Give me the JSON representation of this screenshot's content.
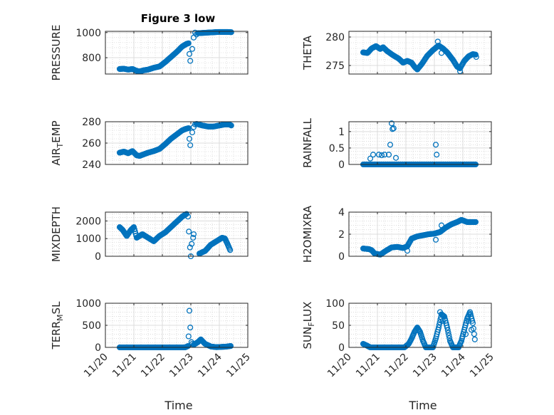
{
  "figure": {
    "title": "Figure 3 low",
    "xlabel": "Time"
  },
  "colors": {
    "marker": "#0072BD",
    "axis": "#262626",
    "grid": "#dcdcdc",
    "minor_grid": "#c8c8c8"
  },
  "chart_data": [
    {
      "type": "scatter",
      "title": "Figure 3 low",
      "ylabel": "PRESSURE",
      "xlim": [
        20,
        25
      ],
      "ylim": [
        670,
        1010
      ],
      "yticks": [
        800,
        1000
      ],
      "xticks": [
        20,
        21,
        22,
        23,
        24,
        25
      ],
      "xticklabels": [
        "11/20",
        "11/21",
        "11/22",
        "11/23",
        "11/24",
        "11/25"
      ],
      "show_xticklabels": false,
      "keys": [
        [
          20.5,
          710
        ],
        [
          20.65,
          712
        ],
        [
          20.8,
          705
        ],
        [
          20.95,
          710
        ],
        [
          21.1,
          695
        ],
        [
          21.2,
          690
        ],
        [
          21.35,
          700
        ],
        [
          21.5,
          705
        ],
        [
          21.7,
          720
        ],
        [
          21.9,
          730
        ],
        [
          22.1,
          765
        ],
        [
          22.3,
          805
        ],
        [
          22.5,
          845
        ],
        [
          22.7,
          890
        ],
        [
          22.85,
          910
        ],
        [
          22.92,
          915
        ]
      ],
      "outliers": [
        [
          22.95,
          830
        ],
        [
          22.98,
          775
        ],
        [
          23.05,
          870
        ],
        [
          23.1,
          960
        ],
        [
          23.15,
          1000
        ],
        [
          23.2,
          985
        ]
      ],
      "tail": [
        [
          23.25,
          995
        ],
        [
          23.6,
          1000
        ],
        [
          24.0,
          1005
        ],
        [
          24.3,
          1005
        ],
        [
          24.42,
          1003
        ]
      ]
    },
    {
      "type": "scatter",
      "ylabel": "THETA",
      "xlim": [
        20,
        25
      ],
      "ylim": [
        273.5,
        281
      ],
      "yticks": [
        275,
        280
      ],
      "xticks": [
        20,
        21,
        22,
        23,
        24,
        25
      ],
      "xticklabels": [
        "11/20",
        "11/21",
        "11/22",
        "11/23",
        "11/24",
        "11/25"
      ],
      "show_xticklabels": false,
      "keys": [
        [
          20.5,
          277.3
        ],
        [
          20.65,
          277.2
        ],
        [
          20.8,
          278.0
        ],
        [
          20.95,
          278.4
        ],
        [
          21.1,
          277.9
        ],
        [
          21.2,
          278.2
        ],
        [
          21.35,
          277.5
        ],
        [
          21.55,
          276.8
        ],
        [
          21.75,
          276.2
        ],
        [
          21.9,
          275.5
        ],
        [
          22.05,
          275.8
        ],
        [
          22.2,
          275.5
        ],
        [
          22.3,
          274.8
        ],
        [
          22.4,
          274.3
        ],
        [
          22.55,
          275.2
        ],
        [
          22.75,
          276.7
        ],
        [
          22.95,
          277.7
        ],
        [
          23.15,
          278.5
        ],
        [
          23.3,
          278.0
        ],
        [
          23.45,
          277.3
        ],
        [
          23.65,
          276.0
        ],
        [
          23.8,
          274.8
        ],
        [
          23.9,
          274.5
        ],
        [
          24.05,
          275.8
        ],
        [
          24.2,
          276.6
        ],
        [
          24.35,
          277.0
        ],
        [
          24.45,
          276.9
        ]
      ],
      "outliers": [
        [
          23.12,
          279.2
        ],
        [
          23.25,
          277.2
        ],
        [
          24.47,
          276.5
        ],
        [
          23.9,
          274.0
        ]
      ],
      "tail": []
    },
    {
      "type": "scatter",
      "ylabel": "AIR_TEMP",
      "xlim": [
        20,
        25
      ],
      "ylim": [
        240,
        280
      ],
      "yticks": [
        240,
        260,
        280
      ],
      "xticks": [
        20,
        21,
        22,
        23,
        24,
        25
      ],
      "xticklabels": [
        "11/20",
        "11/21",
        "11/22",
        "11/23",
        "11/24",
        "11/25"
      ],
      "show_xticklabels": false,
      "keys": [
        [
          20.5,
          251
        ],
        [
          20.65,
          252
        ],
        [
          20.8,
          250.5
        ],
        [
          20.95,
          252.5
        ],
        [
          21.1,
          248.5
        ],
        [
          21.2,
          248
        ],
        [
          21.35,
          249.5
        ],
        [
          21.5,
          251
        ],
        [
          21.7,
          252.5
        ],
        [
          21.9,
          254.5
        ],
        [
          22.1,
          259
        ],
        [
          22.3,
          264
        ],
        [
          22.5,
          268
        ],
        [
          22.7,
          272
        ],
        [
          22.85,
          273.5
        ],
        [
          22.92,
          274
        ]
      ],
      "outliers": [
        [
          22.95,
          264
        ],
        [
          22.98,
          258
        ],
        [
          23.05,
          270
        ],
        [
          23.1,
          275
        ],
        [
          23.15,
          277.5
        ]
      ],
      "tail": [
        [
          23.2,
          278
        ],
        [
          23.4,
          276.5
        ],
        [
          23.6,
          275.5
        ],
        [
          23.8,
          275.5
        ],
        [
          24.0,
          276.5
        ],
        [
          24.2,
          277.5
        ],
        [
          24.35,
          277.5
        ],
        [
          24.42,
          276.5
        ]
      ]
    },
    {
      "type": "scatter",
      "ylabel": "RAINFALL",
      "xlim": [
        20,
        25
      ],
      "ylim": [
        0,
        1.3
      ],
      "yticks": [
        0,
        0.5,
        1
      ],
      "xticks": [
        20,
        21,
        22,
        23,
        24,
        25
      ],
      "xticklabels": [
        "11/20",
        "11/21",
        "11/22",
        "11/23",
        "11/24",
        "11/25"
      ],
      "show_xticklabels": false,
      "keys": [
        [
          20.5,
          0
        ],
        [
          24.45,
          0
        ]
      ],
      "outliers": [
        [
          20.75,
          0.18
        ],
        [
          20.85,
          0.3
        ],
        [
          21.05,
          0.3
        ],
        [
          21.15,
          0.28
        ],
        [
          21.25,
          0.3
        ],
        [
          21.4,
          0.3
        ],
        [
          21.45,
          0.6
        ],
        [
          21.5,
          1.25
        ],
        [
          21.53,
          1.08
        ],
        [
          21.57,
          1.1
        ],
        [
          21.65,
          0.2
        ],
        [
          23.05,
          0.6
        ],
        [
          23.08,
          0.3
        ]
      ],
      "tail": []
    },
    {
      "type": "scatter",
      "ylabel": "MIXDEPTH",
      "xlim": [
        20,
        25
      ],
      "ylim": [
        0,
        2500
      ],
      "yticks": [
        0,
        1000,
        2000
      ],
      "xticks": [
        20,
        21,
        22,
        23,
        24,
        25
      ],
      "xticklabels": [
        "11/20",
        "11/21",
        "11/22",
        "11/23",
        "11/24",
        "11/25"
      ],
      "show_xticklabels": false,
      "keys": [
        [
          20.5,
          1650
        ],
        [
          20.6,
          1500
        ],
        [
          20.75,
          1150
        ],
        [
          20.9,
          1500
        ],
        [
          21.0,
          1650
        ],
        [
          21.1,
          1050
        ],
        [
          21.3,
          1250
        ],
        [
          21.5,
          1050
        ],
        [
          21.7,
          850
        ],
        [
          21.9,
          1150
        ],
        [
          22.1,
          1350
        ],
        [
          22.3,
          1650
        ],
        [
          22.5,
          1950
        ],
        [
          22.7,
          2250
        ],
        [
          22.85,
          2400
        ]
      ],
      "outliers": [
        [
          22.9,
          2250
        ],
        [
          22.93,
          1400
        ],
        [
          22.97,
          500
        ],
        [
          23.0,
          0
        ],
        [
          23.03,
          700
        ],
        [
          23.08,
          1050
        ],
        [
          23.1,
          1250
        ]
      ],
      "tail": [
        [
          23.3,
          150
        ],
        [
          23.5,
          300
        ],
        [
          23.7,
          650
        ],
        [
          23.9,
          850
        ],
        [
          24.1,
          1050
        ],
        [
          24.2,
          1000
        ],
        [
          24.3,
          650
        ],
        [
          24.38,
          350
        ]
      ]
    },
    {
      "type": "scatter",
      "ylabel": "H2OMIXRA",
      "xlim": [
        20,
        25
      ],
      "ylim": [
        0,
        4
      ],
      "yticks": [
        0,
        2,
        4
      ],
      "xticks": [
        20,
        21,
        22,
        23,
        24,
        25
      ],
      "xticklabels": [
        "11/20",
        "11/21",
        "11/22",
        "11/23",
        "11/24",
        "11/25"
      ],
      "show_xticklabels": false,
      "keys": [
        [
          20.5,
          0.7
        ],
        [
          20.7,
          0.65
        ],
        [
          20.8,
          0.55
        ],
        [
          20.9,
          0.25
        ],
        [
          21.1,
          0.15
        ],
        [
          21.3,
          0.5
        ],
        [
          21.5,
          0.8
        ],
        [
          21.7,
          0.85
        ],
        [
          21.9,
          0.75
        ],
        [
          22.05,
          0.9
        ],
        [
          22.2,
          1.6
        ],
        [
          22.4,
          1.8
        ],
        [
          22.6,
          1.9
        ],
        [
          22.8,
          2.0
        ],
        [
          23.0,
          2.05
        ],
        [
          23.2,
          2.2
        ],
        [
          23.4,
          2.6
        ],
        [
          23.6,
          2.9
        ],
        [
          23.8,
          3.1
        ],
        [
          23.95,
          3.3
        ],
        [
          24.15,
          3.1
        ],
        [
          24.3,
          3.1
        ],
        [
          24.45,
          3.1
        ]
      ],
      "outliers": [
        [
          23.05,
          1.5
        ],
        [
          23.25,
          2.8
        ],
        [
          22.05,
          0.5
        ]
      ],
      "tail": []
    },
    {
      "type": "scatter",
      "ylabel": "TERR_MSL",
      "xlim": [
        20,
        25
      ],
      "ylim": [
        0,
        1000
      ],
      "yticks": [
        0,
        500,
        1000
      ],
      "xticks": [
        20,
        21,
        22,
        23,
        24,
        25
      ],
      "xticklabels": [
        "11/20",
        "11/21",
        "11/22",
        "11/23",
        "11/24",
        "11/25"
      ],
      "show_xticklabels": true,
      "keys": [
        [
          20.5,
          0
        ],
        [
          22.8,
          0
        ],
        [
          22.9,
          30
        ]
      ],
      "outliers": [
        [
          22.92,
          250
        ],
        [
          22.95,
          830
        ],
        [
          22.98,
          450
        ],
        [
          23.02,
          120
        ],
        [
          23.05,
          80
        ]
      ],
      "tail": [
        [
          23.1,
          60
        ],
        [
          23.25,
          120
        ],
        [
          23.35,
          180
        ],
        [
          23.5,
          80
        ],
        [
          23.7,
          20
        ],
        [
          23.9,
          5
        ],
        [
          24.2,
          15
        ],
        [
          24.4,
          30
        ]
      ]
    },
    {
      "type": "scatter",
      "ylabel": "SUN_FLUX",
      "xlim": [
        20,
        25
      ],
      "ylim": [
        0,
        100
      ],
      "yticks": [
        0,
        50,
        100
      ],
      "xticks": [
        20,
        21,
        22,
        23,
        24,
        25
      ],
      "xticklabels": [
        "11/20",
        "11/21",
        "11/22",
        "11/23",
        "11/24",
        "11/25"
      ],
      "show_xticklabels": true,
      "keys": [
        [
          20.5,
          8
        ],
        [
          20.6,
          5
        ],
        [
          20.75,
          0
        ],
        [
          21.95,
          0
        ],
        [
          22.1,
          8
        ],
        [
          22.2,
          20
        ],
        [
          22.3,
          35
        ],
        [
          22.4,
          45
        ],
        [
          22.5,
          35
        ],
        [
          22.6,
          15
        ],
        [
          22.7,
          0
        ],
        [
          22.95,
          0
        ],
        [
          23.05,
          20
        ],
        [
          23.15,
          45
        ],
        [
          23.25,
          75
        ],
        [
          23.35,
          70
        ],
        [
          23.45,
          45
        ],
        [
          23.55,
          15
        ],
        [
          23.65,
          0
        ],
        [
          23.85,
          0
        ],
        [
          23.95,
          15
        ],
        [
          24.05,
          40
        ],
        [
          24.15,
          65
        ],
        [
          24.25,
          80
        ],
        [
          24.35,
          55
        ],
        [
          24.42,
          18
        ]
      ],
      "outliers": [
        [
          23.2,
          80
        ],
        [
          23.3,
          60
        ],
        [
          24.1,
          30
        ],
        [
          24.3,
          40
        ],
        [
          24.2,
          60
        ]
      ],
      "tail": []
    }
  ]
}
